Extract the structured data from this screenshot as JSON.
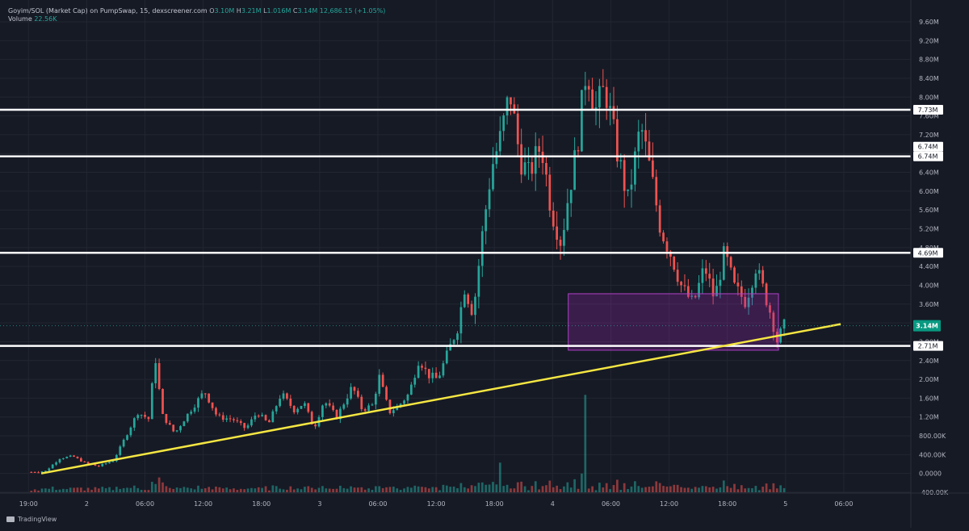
{
  "legend": {
    "title": "Goyim/SOL (Market Cap) on PumpSwap, 15, dexscreener.com",
    "o_label": "O",
    "o_value": "3.10M",
    "h_label": "H",
    "h_value": "3.21M",
    "l_label": "L",
    "l_value": "1.016M",
    "c_label": "C",
    "c_value": "3.14M",
    "change": "12,686.15 (+1.05%)",
    "volume_label": "Volume",
    "volume_value": "22.56K"
  },
  "branding": {
    "name": "TradingView"
  },
  "colors": {
    "background": "#161a25",
    "grid": "#222631",
    "up": "#26a69a",
    "down": "#ef5350",
    "level_line": "#ffffff",
    "trendline": "#f5e642",
    "zone_fill": "rgba(156,39,176,0.28)",
    "zone_border": "#b040c8",
    "price_badge": "#089981"
  },
  "chart_data": {
    "type": "candlestick",
    "timeframe": "15",
    "x_ticks": [
      "19:00",
      "2",
      "06:00",
      "12:00",
      "18:00",
      "3",
      "06:00",
      "12:00",
      "18:00",
      "4",
      "06:00",
      "12:00",
      "18:00",
      "5",
      "06:00"
    ],
    "y_ticks": [
      "-400.00K",
      "0.0000",
      "400.00K",
      "800.00K",
      "1.20M",
      "1.60M",
      "2.00M",
      "2.40M",
      "2.80M",
      "3.20M",
      "3.60M",
      "4.00M",
      "4.40M",
      "4.80M",
      "5.20M",
      "5.60M",
      "6.00M",
      "6.40M",
      "6.80M",
      "7.20M",
      "7.60M",
      "8.00M",
      "8.40M",
      "8.80M",
      "9.20M",
      "9.60M"
    ],
    "y_tick_values": [
      -0.4,
      0,
      0.4,
      0.8,
      1.2,
      1.6,
      2.0,
      2.4,
      2.8,
      3.2,
      3.6,
      4.0,
      4.4,
      4.8,
      5.2,
      5.6,
      6.0,
      6.4,
      6.8,
      7.2,
      7.6,
      8.0,
      8.4,
      8.8,
      9.2,
      9.6
    ],
    "y_range_millions": [
      -0.4,
      9.6
    ],
    "x_range_hours": [
      0,
      61
    ],
    "horizontal_levels": [
      {
        "value": 7.73,
        "label": "7.73M"
      },
      {
        "value": 6.74,
        "label": "6.74M"
      },
      {
        "value": 4.69,
        "label": "4.69M"
      },
      {
        "value": 2.71,
        "label": "2.71M"
      }
    ],
    "extra_axis_labels": [
      {
        "value": 6.74,
        "label": "6.74M"
      }
    ],
    "current_price": {
      "value": 3.14,
      "label": "3.14M"
    },
    "trendline": {
      "start": {
        "t": 1.2,
        "v": 0.0
      },
      "end": {
        "t": 53.5,
        "v": 2.95
      }
    },
    "zone": {
      "t_start": 38.3,
      "t_end": 53.1,
      "v_low": 2.62,
      "v_high": 3.82
    },
    "anchors": [
      [
        0.5,
        0.03
      ],
      [
        1.5,
        0.05
      ],
      [
        2.5,
        0.32
      ],
      [
        3.4,
        0.37
      ],
      [
        4.3,
        0.22
      ],
      [
        5.2,
        0.15
      ],
      [
        6.3,
        0.28
      ],
      [
        7.0,
        0.7
      ],
      [
        8.0,
        1.3
      ],
      [
        8.8,
        1.15
      ],
      [
        9.2,
        2.55
      ],
      [
        9.7,
        1.25
      ],
      [
        10.6,
        0.85
      ],
      [
        11.6,
        1.3
      ],
      [
        12.7,
        1.75
      ],
      [
        13.6,
        1.2
      ],
      [
        14.7,
        1.15
      ],
      [
        15.6,
        0.95
      ],
      [
        16.4,
        1.3
      ],
      [
        17.2,
        1.05
      ],
      [
        18.1,
        1.7
      ],
      [
        19.0,
        1.35
      ],
      [
        19.7,
        1.5
      ],
      [
        20.4,
        0.95
      ],
      [
        21.1,
        1.55
      ],
      [
        22.0,
        1.2
      ],
      [
        23.1,
        1.85
      ],
      [
        23.8,
        1.35
      ],
      [
        24.5,
        1.45
      ],
      [
        25.0,
        2.05
      ],
      [
        25.7,
        1.3
      ],
      [
        26.4,
        1.45
      ],
      [
        27.1,
        1.7
      ],
      [
        27.8,
        2.45
      ],
      [
        28.4,
        2.1
      ],
      [
        29.1,
        2.0
      ],
      [
        29.8,
        2.55
      ],
      [
        30.5,
        3.1
      ],
      [
        31.0,
        3.95
      ],
      [
        31.6,
        3.4
      ],
      [
        32.3,
        5.2
      ],
      [
        32.9,
        6.5
      ],
      [
        33.5,
        7.1
      ],
      [
        34.2,
        8.1
      ],
      [
        34.9,
        6.7
      ],
      [
        35.5,
        6.35
      ],
      [
        36.4,
        7.0
      ],
      [
        37.1,
        5.6
      ],
      [
        37.8,
        4.9
      ],
      [
        38.3,
        5.9
      ],
      [
        38.9,
        6.9
      ],
      [
        39.6,
        8.7
      ],
      [
        40.2,
        7.7
      ],
      [
        40.9,
        8.2
      ],
      [
        41.7,
        6.9
      ],
      [
        42.5,
        5.8
      ],
      [
        43.4,
        7.4
      ],
      [
        44.1,
        6.4
      ],
      [
        44.8,
        5.2
      ],
      [
        45.6,
        4.6
      ],
      [
        46.3,
        3.95
      ],
      [
        47.1,
        3.6
      ],
      [
        47.9,
        4.4
      ],
      [
        48.6,
        3.7
      ],
      [
        49.3,
        4.7
      ],
      [
        50.0,
        3.95
      ],
      [
        50.8,
        3.65
      ],
      [
        51.5,
        4.4
      ],
      [
        52.1,
        3.85
      ],
      [
        52.6,
        3.35
      ],
      [
        53.0,
        2.82
      ],
      [
        53.5,
        3.14
      ]
    ],
    "volume_spikes": [
      {
        "t": 39.6,
        "v": 2.3
      },
      {
        "t": 33.4,
        "v": 0.7
      },
      {
        "t": 9.5,
        "v": 0.35
      }
    ]
  }
}
